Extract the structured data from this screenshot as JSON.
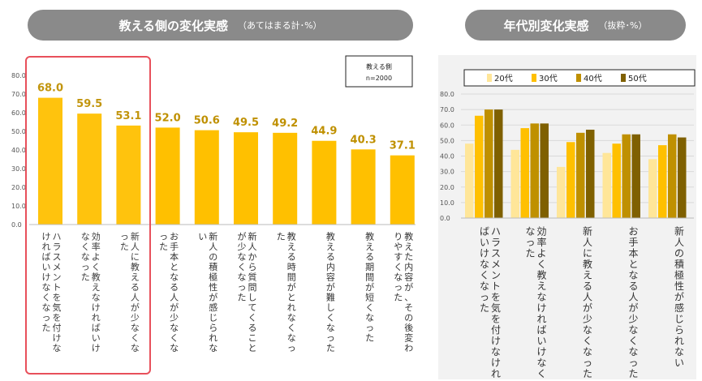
{
  "left_panel": {
    "title": "教える側の変化実感",
    "subtitle": "（あてはまる計･%）",
    "legend_box": {
      "line1": "教える側",
      "line2": "n=2000"
    }
  },
  "right_panel": {
    "title": "年代別変化実感",
    "subtitle": "（抜粋･%）"
  },
  "colors": {
    "bar": "#FFC000",
    "highlight": "#E8505B",
    "pill": "#8A8A8A",
    "s20": "#FFE699",
    "s30": "#FFC000",
    "s40": "#BF9000",
    "s50": "#7F6000"
  },
  "chart_data": [
    {
      "type": "bar",
      "title": "教える側の変化実感",
      "subtitle": "（あてはまる計･%）",
      "ylim": [
        0,
        80
      ],
      "yticks": [
        "0.0",
        "10.0",
        "20.0",
        "30.0",
        "40.0",
        "50.0",
        "60.0",
        "70.0",
        "80.0"
      ],
      "categories": [
        "ハラスメントを気を付けなければいけなくなった",
        "効率よく教えなければいけなくなった",
        "新人に教える人が少なくなった",
        "お手本となる人が少なくなった",
        "新人の積極性が感じられない",
        "新人から質問してくることが少なくなった",
        "教える時間がとれなくなった",
        "教える内容が難しくなった",
        "教える期間が短くなった",
        "教えた内容が、その後変わりやすくなった"
      ],
      "values": [
        68.0,
        59.5,
        53.1,
        52.0,
        50.6,
        49.5,
        49.2,
        44.9,
        40.3,
        37.1
      ],
      "value_labels": [
        "68.0",
        "59.5",
        "53.1",
        "52.0",
        "50.6",
        "49.5",
        "49.2",
        "44.9",
        "40.3",
        "37.1"
      ],
      "highlighted": [
        0,
        1,
        2
      ]
    },
    {
      "type": "bar",
      "title": "年代別変化実感",
      "subtitle": "（抜粋･%）",
      "ylim": [
        0,
        80
      ],
      "yticks": [
        "0.0",
        "10.0",
        "20.0",
        "30.0",
        "40.0",
        "50.0",
        "60.0",
        "70.0",
        "80.0"
      ],
      "categories": [
        "ハラスメントを気を付けなければいけなくなった",
        "効率よく教えなければいけなくなった",
        "新人に教える人が少なくなった",
        "お手本となる人が少なくなった",
        "新人の積極性が感じられない"
      ],
      "series": [
        {
          "name": "20代",
          "values": [
            48,
            44,
            33,
            42,
            38
          ]
        },
        {
          "name": "30代",
          "values": [
            66,
            58,
            49,
            48,
            47
          ]
        },
        {
          "name": "40代",
          "values": [
            70,
            61,
            55,
            54,
            54
          ]
        },
        {
          "name": "50代",
          "values": [
            70,
            61,
            57,
            54,
            52
          ]
        }
      ],
      "legend": "top"
    }
  ]
}
